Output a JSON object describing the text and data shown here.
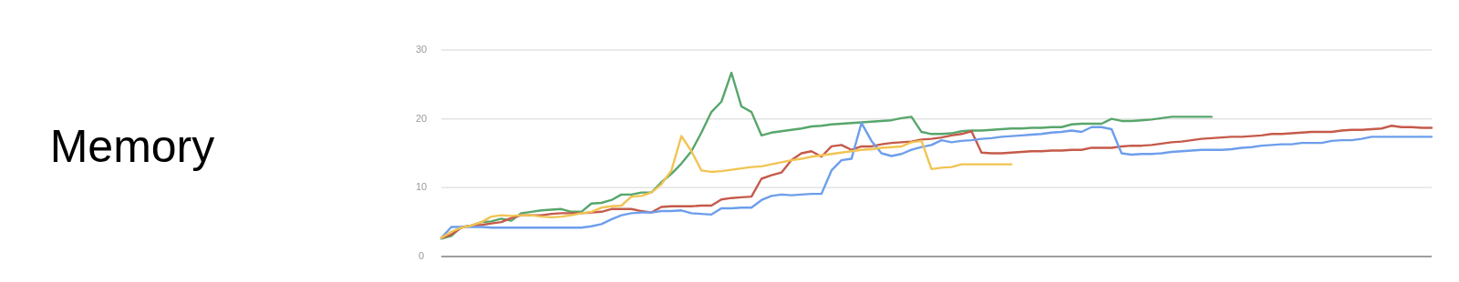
{
  "chart_data": {
    "type": "line",
    "title": "Memory",
    "categories": [
      null,
      null,
      null,
      null,
      null,
      null,
      null,
      null,
      null,
      null,
      null,
      null,
      null,
      null,
      null,
      null,
      null,
      null,
      null,
      null,
      null,
      null,
      null,
      null,
      null,
      null,
      null,
      null,
      null,
      null,
      null,
      null,
      null,
      null,
      null,
      null,
      null,
      null,
      null,
      null,
      null,
      null,
      null,
      null,
      null,
      null,
      null,
      null,
      null,
      null,
      null,
      null,
      null,
      null,
      null,
      null,
      null,
      null,
      null,
      null,
      null,
      null,
      null,
      null,
      null,
      null,
      null,
      null,
      null,
      null,
      null,
      null,
      null,
      null,
      null,
      null,
      null,
      null,
      null,
      null,
      null,
      null,
      null,
      null,
      null,
      null,
      null,
      null,
      null,
      null,
      null,
      null,
      null,
      null,
      null,
      null,
      null,
      null,
      null,
      null
    ],
    "series": [
      {
        "color": "#57a66b",
        "values": [
          2.6,
          3,
          4.3,
          4.5,
          5,
          5.1,
          5.5,
          5.2,
          6.3,
          6.5,
          6.7,
          6.8,
          6.9,
          6.5,
          6.5,
          7.7,
          7.8,
          8.2,
          9,
          9,
          9.3,
          9.3,
          10.8,
          12,
          13.5,
          15.3,
          18,
          21,
          22.5,
          26.7,
          21.8,
          21,
          17.6,
          18,
          18.2,
          18.4,
          18.6,
          18.9,
          19,
          19.2,
          19.3,
          19.4,
          19.5,
          19.6,
          19.7,
          19.8,
          20.1,
          20.3,
          18.1,
          17.8,
          17.8,
          17.9,
          18.2,
          18.3,
          18.3,
          18.4,
          18.5,
          18.6,
          18.6,
          18.7,
          18.7,
          18.8,
          18.8,
          19.2,
          19.3,
          19.3,
          19.3,
          20,
          19.7,
          19.7,
          19.8,
          19.9,
          20.1,
          20.3,
          20.3,
          20.3,
          20.3,
          20.3,
          null,
          null,
          null,
          null,
          null,
          null,
          null,
          null,
          null,
          null,
          null,
          null,
          null,
          null,
          null,
          null,
          null,
          null,
          null,
          null,
          null,
          null
        ]
      },
      {
        "color": "#c55a4a",
        "values": [
          2.7,
          3.2,
          4.2,
          4.5,
          4.6,
          4.8,
          5,
          5.6,
          6,
          6,
          6,
          6.2,
          6.3,
          6.3,
          6.3,
          6.4,
          6.5,
          6.9,
          6.9,
          6.9,
          6.6,
          6.4,
          7.2,
          7.3,
          7.3,
          7.3,
          7.4,
          7.4,
          8.3,
          8.5,
          8.6,
          8.7,
          11.3,
          11.8,
          12.2,
          14,
          15,
          15.3,
          14.5,
          16,
          16.2,
          15.5,
          16,
          16,
          16.3,
          16.5,
          16.6,
          16.7,
          17,
          17.1,
          17.3,
          17.6,
          17.8,
          18.2,
          15.1,
          15,
          15,
          15.1,
          15.2,
          15.3,
          15.3,
          15.4,
          15.4,
          15.5,
          15.5,
          15.8,
          15.8,
          15.8,
          16,
          16.1,
          16.1,
          16.2,
          16.4,
          16.6,
          16.7,
          16.9,
          17.1,
          17.2,
          17.3,
          17.4,
          17.4,
          17.5,
          17.6,
          17.8,
          17.8,
          17.9,
          18,
          18.1,
          18.1,
          18.1,
          18.3,
          18.4,
          18.4,
          18.5,
          18.6,
          19,
          18.8,
          18.8,
          18.7,
          18.7
        ]
      },
      {
        "color": "#6d9eeb",
        "values": [
          2.7,
          4.3,
          4.3,
          4.3,
          4.3,
          4.2,
          4.2,
          4.2,
          4.2,
          4.2,
          4.2,
          4.2,
          4.2,
          4.2,
          4.2,
          4.4,
          4.7,
          5.4,
          6,
          6.3,
          6.4,
          6.4,
          6.6,
          6.6,
          6.7,
          6.3,
          6.2,
          6.1,
          7,
          7,
          7.1,
          7.1,
          8.2,
          8.8,
          9,
          8.9,
          9,
          9.1,
          9.1,
          12.5,
          14,
          14.2,
          19.4,
          16.8,
          15,
          14.6,
          14.9,
          15.5,
          15.9,
          16.2,
          16.9,
          16.6,
          16.8,
          16.9,
          17.1,
          17.2,
          17.4,
          17.5,
          17.6,
          17.7,
          17.8,
          18,
          18.1,
          18.3,
          18.1,
          18.8,
          18.8,
          18.5,
          15,
          14.8,
          14.9,
          14.9,
          15,
          15.2,
          15.3,
          15.4,
          15.5,
          15.5,
          15.5,
          15.6,
          15.8,
          15.9,
          16.1,
          16.2,
          16.3,
          16.3,
          16.5,
          16.5,
          16.5,
          16.8,
          16.9,
          16.9,
          17.1,
          17.4,
          17.4,
          17.4,
          17.4,
          17.4,
          17.4,
          17.4
        ]
      },
      {
        "color": "#f1c453",
        "values": [
          2.7,
          3.6,
          4.2,
          4.5,
          5,
          5.8,
          6,
          5.9,
          6,
          6,
          5.8,
          5.7,
          5.8,
          6,
          6.3,
          6.5,
          7.1,
          7.3,
          7.4,
          8.7,
          8.8,
          9.3,
          10.5,
          12.5,
          17.5,
          15.3,
          12.5,
          12.3,
          12.4,
          12.6,
          12.8,
          13,
          13.1,
          13.4,
          13.7,
          14,
          14.2,
          14.5,
          14.7,
          14.9,
          15.1,
          15.3,
          15.5,
          15.6,
          15.8,
          15.9,
          16,
          16.6,
          16.8,
          12.7,
          12.9,
          13,
          13.4,
          13.4,
          13.4,
          13.4,
          13.4,
          13.4,
          null,
          null,
          null,
          null,
          null,
          null,
          null,
          null,
          null,
          null,
          null,
          null,
          null,
          null,
          null,
          null,
          null,
          null,
          null,
          null,
          null,
          null,
          null,
          null,
          null,
          null,
          null,
          null,
          null,
          null,
          null,
          null,
          null,
          null,
          null,
          null,
          null,
          null,
          null,
          null,
          null,
          null
        ]
      }
    ],
    "ylim": [
      0,
      30
    ],
    "yticks": [
      0,
      10,
      20,
      30
    ],
    "grid": "y",
    "tick_labels": "y"
  }
}
